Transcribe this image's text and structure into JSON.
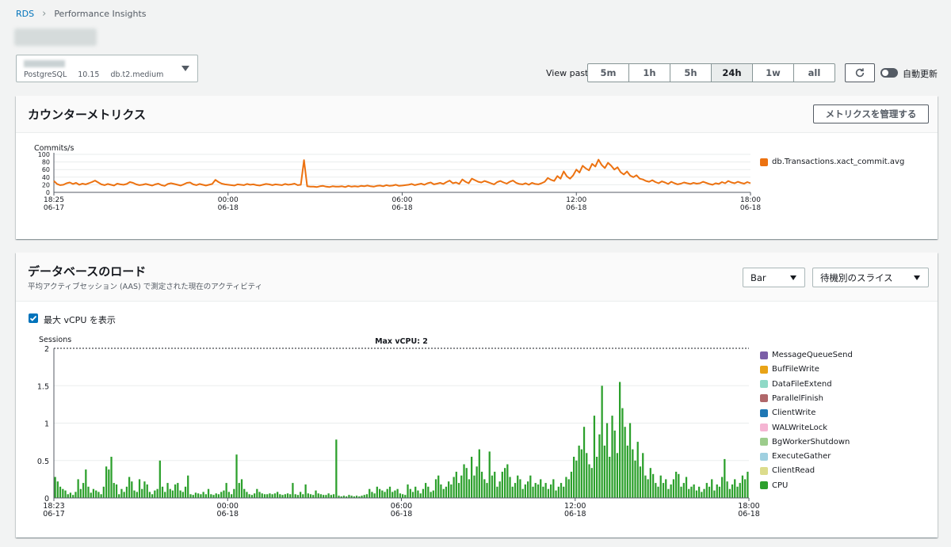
{
  "breadcrumb": {
    "root": "RDS",
    "current": "Performance Insights"
  },
  "instance": {
    "engine": "PostgreSQL",
    "version": "10.15",
    "class": "db.t2.medium"
  },
  "view_past": {
    "label": "View past",
    "options": [
      "5m",
      "1h",
      "5h",
      "24h",
      "1w",
      "all"
    ],
    "selected": "24h"
  },
  "auto_refresh": {
    "label": "自動更新",
    "enabled": false
  },
  "counter": {
    "title": "カウンターメトリクス",
    "manage_button": "メトリクスを管理する",
    "legend": [
      {
        "name": "db.Transactions.xact_commit.avg",
        "color": "#ec7211"
      }
    ]
  },
  "load": {
    "title": "データベースのロード",
    "subtitle": "平均アクティブセッション (AAS) で測定された現在のアクティビティ",
    "chart_type_select": "Bar",
    "slice_select": "待機別のスライス",
    "show_vcpu_label": "最大 vCPU を表示",
    "show_vcpu_checked": true,
    "legend": [
      {
        "name": "MessageQueueSend",
        "color": "#7b5ea7"
      },
      {
        "name": "BufFileWrite",
        "color": "#e8a317"
      },
      {
        "name": "DataFileExtend",
        "color": "#8fd9c6"
      },
      {
        "name": "ParallelFinish",
        "color": "#b0676a"
      },
      {
        "name": "ClientWrite",
        "color": "#1f77b4"
      },
      {
        "name": "WALWriteLock",
        "color": "#f5b5d3"
      },
      {
        "name": "BgWorkerShutdown",
        "color": "#9ccc8c"
      },
      {
        "name": "ExecuteGather",
        "color": "#9fd0e0"
      },
      {
        "name": "ClientRead",
        "color": "#dcdc8c"
      },
      {
        "name": "CPU",
        "color": "#2ca02c"
      }
    ]
  },
  "chart_data": [
    {
      "type": "line",
      "ylabel": "Commits/s",
      "ylim": [
        0,
        100
      ],
      "yticks": [
        "100",
        "80",
        "60",
        "40",
        "20",
        "0"
      ],
      "xticks": [
        {
          "time": "18:25",
          "date": "06-17"
        },
        {
          "time": "00:00",
          "date": "06-18"
        },
        {
          "time": "06:00",
          "date": "06-18"
        },
        {
          "time": "12:00",
          "date": "06-18"
        },
        {
          "time": "18:00",
          "date": "06-18"
        }
      ],
      "grid": true,
      "series": [
        {
          "name": "db.Transactions.xact_commit.avg",
          "color": "#ec7211",
          "values": [
            30,
            22,
            19,
            20,
            24,
            26,
            22,
            25,
            20,
            23,
            21,
            24,
            27,
            31,
            26,
            21,
            19,
            22,
            20,
            18,
            23,
            21,
            20,
            22,
            27,
            25,
            21,
            19,
            20,
            22,
            20,
            18,
            21,
            23,
            19,
            17,
            22,
            24,
            22,
            20,
            18,
            21,
            25,
            26,
            21,
            19,
            22,
            20,
            18,
            20,
            22,
            33,
            27,
            23,
            21,
            20,
            19,
            18,
            21,
            20,
            19,
            22,
            20,
            21,
            19,
            18,
            20,
            22,
            21,
            19,
            21,
            20,
            19,
            22,
            20,
            21,
            23,
            19,
            20,
            85,
            16,
            15,
            15,
            14,
            16,
            17,
            15,
            14,
            16,
            15,
            15,
            16,
            14,
            17,
            15,
            16,
            15,
            17,
            16,
            18,
            16,
            15,
            17,
            18,
            16,
            19,
            17,
            18,
            20,
            17,
            18,
            19,
            20,
            22,
            19,
            21,
            23,
            20,
            24,
            26,
            21,
            23,
            25,
            22,
            27,
            31,
            24,
            26,
            22,
            34,
            28,
            24,
            36,
            32,
            28,
            26,
            30,
            27,
            24,
            21,
            27,
            30,
            26,
            23,
            28,
            31,
            25,
            22,
            21,
            24,
            20,
            25,
            22,
            21,
            24,
            28,
            38,
            33,
            30,
            43,
            36,
            55,
            42,
            36,
            45,
            60,
            52,
            70,
            63,
            58,
            75,
            68,
            86,
            72,
            64,
            78,
            70,
            60,
            66,
            53,
            47,
            55,
            44,
            40,
            45,
            36,
            34,
            30,
            28,
            32,
            27,
            24,
            29,
            26,
            22,
            28,
            24,
            21,
            23,
            26,
            24,
            22,
            25,
            23,
            24,
            28,
            25,
            22,
            20,
            24,
            22,
            27,
            24,
            30,
            26,
            24,
            28,
            25,
            23,
            27,
            24
          ]
        }
      ]
    },
    {
      "type": "bar",
      "ylabel": "Sessions",
      "ylim": [
        0,
        2
      ],
      "yticks": [
        "2",
        "1.5",
        "1",
        "0.5",
        "0"
      ],
      "max_vcpu": 2,
      "max_vcpu_label": "Max vCPU: 2",
      "xticks": [
        {
          "time": "18:23",
          "date": "06-17"
        },
        {
          "time": "00:00",
          "date": "06-18"
        },
        {
          "time": "06:00",
          "date": "06-18"
        },
        {
          "time": "12:00",
          "date": "06-18"
        },
        {
          "time": "18:00",
          "date": "06-18"
        }
      ],
      "grid": true,
      "series": [
        {
          "name": "CPU",
          "color": "#2ca02c",
          "values": [
            0.28,
            0.22,
            0.15,
            0.12,
            0.1,
            0.05,
            0.07,
            0.04,
            0.08,
            0.25,
            0.12,
            0.2,
            0.38,
            0.15,
            0.07,
            0.12,
            0.1,
            0.08,
            0.05,
            0.15,
            0.42,
            0.38,
            0.55,
            0.2,
            0.18,
            0.05,
            0.12,
            0.08,
            0.15,
            0.28,
            0.22,
            0.1,
            0.08,
            0.25,
            0.12,
            0.22,
            0.18,
            0.08,
            0.05,
            0.1,
            0.12,
            0.5,
            0.15,
            0.08,
            0.2,
            0.12,
            0.1,
            0.18,
            0.2,
            0.1,
            0.08,
            0.15,
            0.3,
            0.05,
            0.04,
            0.07,
            0.06,
            0.05,
            0.08,
            0.05,
            0.12,
            0.05,
            0.04,
            0.06,
            0.05,
            0.08,
            0.1,
            0.2,
            0.08,
            0.05,
            0.12,
            0.58,
            0.2,
            0.25,
            0.12,
            0.08,
            0.05,
            0.04,
            0.06,
            0.12,
            0.08,
            0.06,
            0.05,
            0.05,
            0.06,
            0.05,
            0.06,
            0.08,
            0.05,
            0.04,
            0.05,
            0.06,
            0.05,
            0.2,
            0.05,
            0.04,
            0.08,
            0.05,
            0.18,
            0.06,
            0.05,
            0.04,
            0.1,
            0.06,
            0.05,
            0.04,
            0.04,
            0.06,
            0.04,
            0.05,
            0.78,
            0.03,
            0.02,
            0.03,
            0.02,
            0.04,
            0.03,
            0.02,
            0.03,
            0.02,
            0.03,
            0.04,
            0.05,
            0.12,
            0.08,
            0.06,
            0.15,
            0.12,
            0.1,
            0.08,
            0.12,
            0.15,
            0.08,
            0.1,
            0.12,
            0.06,
            0.05,
            0.04,
            0.18,
            0.12,
            0.08,
            0.15,
            0.1,
            0.06,
            0.12,
            0.2,
            0.15,
            0.08,
            0.1,
            0.25,
            0.3,
            0.18,
            0.12,
            0.15,
            0.22,
            0.18,
            0.28,
            0.35,
            0.2,
            0.3,
            0.45,
            0.4,
            0.25,
            0.55,
            0.3,
            0.42,
            0.65,
            0.35,
            0.25,
            0.2,
            0.62,
            0.3,
            0.35,
            0.15,
            0.22,
            0.35,
            0.4,
            0.45,
            0.28,
            0.15,
            0.2,
            0.3,
            0.25,
            0.12,
            0.18,
            0.22,
            0.3,
            0.15,
            0.2,
            0.18,
            0.25,
            0.15,
            0.2,
            0.12,
            0.18,
            0.25,
            0.1,
            0.15,
            0.2,
            0.15,
            0.28,
            0.25,
            0.35,
            0.55,
            0.5,
            0.7,
            0.65,
            0.95,
            0.6,
            0.45,
            0.4,
            1.1,
            0.55,
            0.85,
            1.5,
            0.7,
            1.0,
            0.55,
            1.1,
            0.9,
            0.6,
            1.55,
            1.2,
            0.95,
            0.7,
            1.0,
            0.65,
            0.5,
            0.75,
            0.42,
            0.6,
            0.3,
            0.25,
            0.4,
            0.32,
            0.2,
            0.15,
            0.3,
            0.2,
            0.25,
            0.12,
            0.18,
            0.25,
            0.35,
            0.32,
            0.15,
            0.2,
            0.28,
            0.12,
            0.15,
            0.18,
            0.1,
            0.15,
            0.08,
            0.12,
            0.2,
            0.15,
            0.25,
            0.1,
            0.18,
            0.15,
            0.28,
            0.52,
            0.22,
            0.12,
            0.18,
            0.25,
            0.15,
            0.2,
            0.3,
            0.25,
            0.35
          ]
        }
      ]
    }
  ]
}
